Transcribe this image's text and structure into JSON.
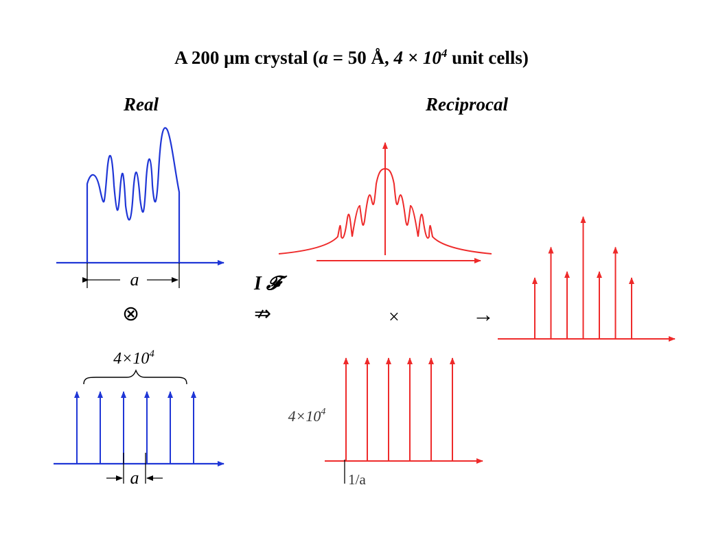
{
  "title": {
    "prefix": "A 200 μm crystal (",
    "a_symbol": "a",
    "a_value": " = 50 Å, ",
    "cells_mantissa": "4 × 10",
    "cells_exponent": "4",
    "suffix": " unit cells)"
  },
  "labels": {
    "real": "Real",
    "reciprocal": "Reciprocal",
    "a_period": "a",
    "count_real": "4×10",
    "count_real_exp": "4",
    "count_recip": "4×10",
    "count_recip_exp": "4",
    "one_over_a": "1/a"
  },
  "operators": {
    "transform": "I 𝓕",
    "implies": "⇏",
    "convolution": "⊗",
    "times": "×",
    "arrow": "→"
  },
  "colors": {
    "real": "#1f36d6",
    "reciprocal": "#ee2a2a",
    "text": "#000000"
  },
  "lattice": {
    "real_spike_count": 6,
    "recip_spike_count": 6,
    "result_spike_heights": [
      0.5,
      0.75,
      0.55,
      1.0,
      0.55,
      0.75,
      0.5
    ]
  }
}
